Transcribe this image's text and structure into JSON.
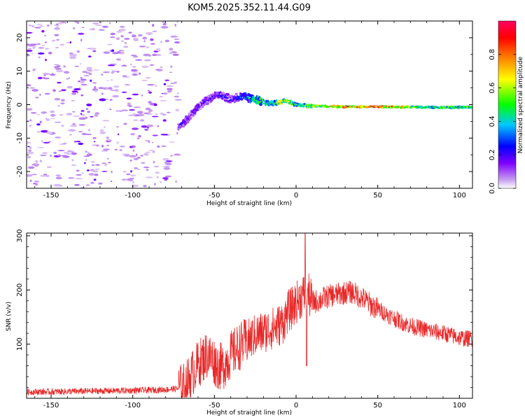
{
  "title": "KOM5.2025.352.11.44.G09",
  "chart_data": [
    {
      "type": "heatmap",
      "xlabel": "Height of straight line (km)",
      "ylabel": "Frequency (Hz)",
      "xlim": [
        -165,
        108
      ],
      "ylim": [
        -25,
        25
      ],
      "x_ticks": [
        -150,
        -100,
        -50,
        0,
        50,
        100
      ],
      "y_ticks": [
        -20,
        -10,
        0,
        10,
        20
      ],
      "colorbar": {
        "label": "Normalized spectral amplitude",
        "range": [
          0,
          1
        ],
        "ticks": [
          0.0,
          0.2,
          0.4,
          0.6,
          0.8
        ],
        "colormap": [
          "#ffffff",
          "#c8a0f0",
          "#8000ff",
          "#0000ff",
          "#00c8ff",
          "#00ff00",
          "#ffff00",
          "#ff8000",
          "#ff0000",
          "#ff0060"
        ]
      },
      "noise_region_x": [
        -165,
        -72
      ],
      "signal_trace": [
        {
          "x": -72,
          "freq": -6.5,
          "amp": 0.18
        },
        {
          "x": -68,
          "freq": -5.0,
          "amp": 0.2
        },
        {
          "x": -64,
          "freq": -3.0,
          "amp": 0.18
        },
        {
          "x": -60,
          "freq": -1.0,
          "amp": 0.22
        },
        {
          "x": -56,
          "freq": 0.8,
          "amp": 0.2
        },
        {
          "x": -52,
          "freq": 2.0,
          "amp": 0.22
        },
        {
          "x": -48,
          "freq": 3.0,
          "amp": 0.2
        },
        {
          "x": -44,
          "freq": 2.5,
          "amp": 0.24
        },
        {
          "x": -40,
          "freq": 1.5,
          "amp": 0.25
        },
        {
          "x": -36,
          "freq": 2.2,
          "amp": 0.28
        },
        {
          "x": -32,
          "freq": 2.5,
          "amp": 0.32
        },
        {
          "x": -28,
          "freq": 1.8,
          "amp": 0.45
        },
        {
          "x": -24,
          "freq": 1.5,
          "amp": 0.5
        },
        {
          "x": -20,
          "freq": 0.8,
          "amp": 0.55
        },
        {
          "x": -16,
          "freq": 0.3,
          "amp": 0.5
        },
        {
          "x": -12,
          "freq": 0.6,
          "amp": 0.55
        },
        {
          "x": -8,
          "freq": 1.0,
          "amp": 0.7
        },
        {
          "x": -4,
          "freq": 0.8,
          "amp": 0.6
        },
        {
          "x": 0,
          "freq": 0.0,
          "amp": 0.5
        },
        {
          "x": 5,
          "freq": -0.3,
          "amp": 0.55
        },
        {
          "x": 10,
          "freq": -0.4,
          "amp": 0.6
        },
        {
          "x": 20,
          "freq": -0.5,
          "amp": 0.7
        },
        {
          "x": 30,
          "freq": -0.6,
          "amp": 0.8
        },
        {
          "x": 40,
          "freq": -0.6,
          "amp": 0.85
        },
        {
          "x": 50,
          "freq": -0.6,
          "amp": 0.9
        },
        {
          "x": 60,
          "freq": -0.7,
          "amp": 0.8
        },
        {
          "x": 70,
          "freq": -0.7,
          "amp": 0.6
        },
        {
          "x": 80,
          "freq": -0.8,
          "amp": 0.45
        },
        {
          "x": 90,
          "freq": -0.8,
          "amp": 0.55
        },
        {
          "x": 100,
          "freq": -0.8,
          "amp": 0.5
        },
        {
          "x": 108,
          "freq": -0.8,
          "amp": 0.5
        }
      ]
    },
    {
      "type": "line",
      "xlabel": "Height of straight line (km)",
      "ylabel": "SNR (v/v)",
      "xlim": [
        -165,
        108
      ],
      "ylim": [
        0,
        305
      ],
      "x_ticks": [
        -150,
        -100,
        -50,
        0,
        50,
        100
      ],
      "y_ticks": [
        100,
        200,
        300
      ],
      "line_color": "#e82828",
      "series": [
        {
          "name": "SNR",
          "points": [
            [
              -165,
              12
            ],
            [
              -150,
              12
            ],
            [
              -130,
              13
            ],
            [
              -110,
              14
            ],
            [
              -90,
              15
            ],
            [
              -80,
              16
            ],
            [
              -72,
              18
            ],
            [
              -68,
              22
            ],
            [
              -65,
              38
            ],
            [
              -62,
              55
            ],
            [
              -58,
              70
            ],
            [
              -55,
              80
            ],
            [
              -52,
              75
            ],
            [
              -48,
              60
            ],
            [
              -45,
              58
            ],
            [
              -40,
              80
            ],
            [
              -36,
              92
            ],
            [
              -33,
              100
            ],
            [
              -30,
              105
            ],
            [
              -27,
              112
            ],
            [
              -24,
              118
            ],
            [
              -20,
              122
            ],
            [
              -16,
              128
            ],
            [
              -12,
              132
            ],
            [
              -8,
              140
            ],
            [
              -5,
              160
            ],
            [
              -2,
              168
            ],
            [
              1,
              180
            ],
            [
              4,
              190
            ],
            [
              7,
              195
            ],
            [
              10,
              178
            ],
            [
              14,
              180
            ],
            [
              18,
              186
            ],
            [
              22,
              190
            ],
            [
              26,
              192
            ],
            [
              30,
              195
            ],
            [
              34,
              196
            ],
            [
              38,
              190
            ],
            [
              42,
              182
            ],
            [
              46,
              172
            ],
            [
              50,
              165
            ],
            [
              55,
              156
            ],
            [
              60,
              148
            ],
            [
              65,
              140
            ],
            [
              70,
              134
            ],
            [
              75,
              130
            ],
            [
              80,
              126
            ],
            [
              85,
              123
            ],
            [
              90,
              120
            ],
            [
              95,
              116
            ],
            [
              100,
              112
            ],
            [
              104,
              110
            ],
            [
              108,
              111
            ]
          ]
        }
      ],
      "spikes": [
        {
          "x": 5.5,
          "y": 305
        },
        {
          "x": 6.5,
          "y": 60
        }
      ]
    }
  ]
}
